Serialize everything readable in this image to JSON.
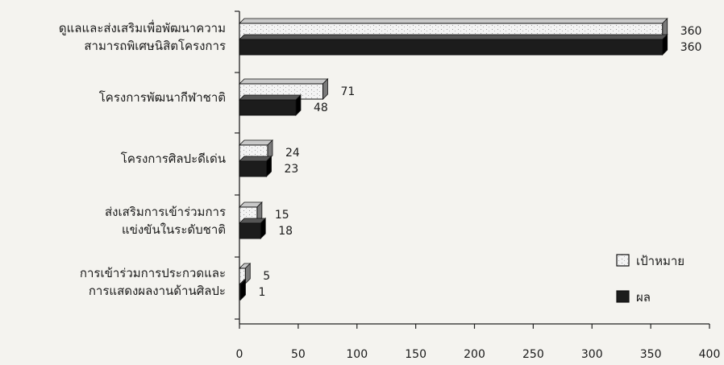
{
  "chart_data": {
    "type": "bar",
    "orientation": "horizontal",
    "title": "",
    "xlabel": "",
    "ylabel": "",
    "xlim": [
      0,
      400
    ],
    "x_ticks": [
      0,
      50,
      100,
      150,
      200,
      250,
      300,
      350,
      400
    ],
    "grid": false,
    "legend_position": "bottom-right",
    "categories": [
      [
        "ดูแลและส่งเสริมเพื่อพัฒนาความ",
        "สามารถพิเศษนิสิตโครงการ"
      ],
      [
        "โครงการพัฒนากีฬาชาติ"
      ],
      [
        "โครงการศิลปะดีเด่น"
      ],
      [
        "ส่งเสริมการเข้าร่วมการ",
        "แข่งขันในระดับชาติ"
      ],
      [
        "การเข้าร่วมการประกวดและ",
        "การแสดงผลงานด้านศิลปะ"
      ]
    ],
    "series": [
      {
        "name": "เป้าหมาย",
        "color": "#f2f2f2",
        "values": [
          360,
          71,
          24,
          15,
          5
        ]
      },
      {
        "name": "ผล",
        "color": "#1c1c1c",
        "values": [
          360,
          48,
          23,
          18,
          1
        ]
      }
    ]
  }
}
